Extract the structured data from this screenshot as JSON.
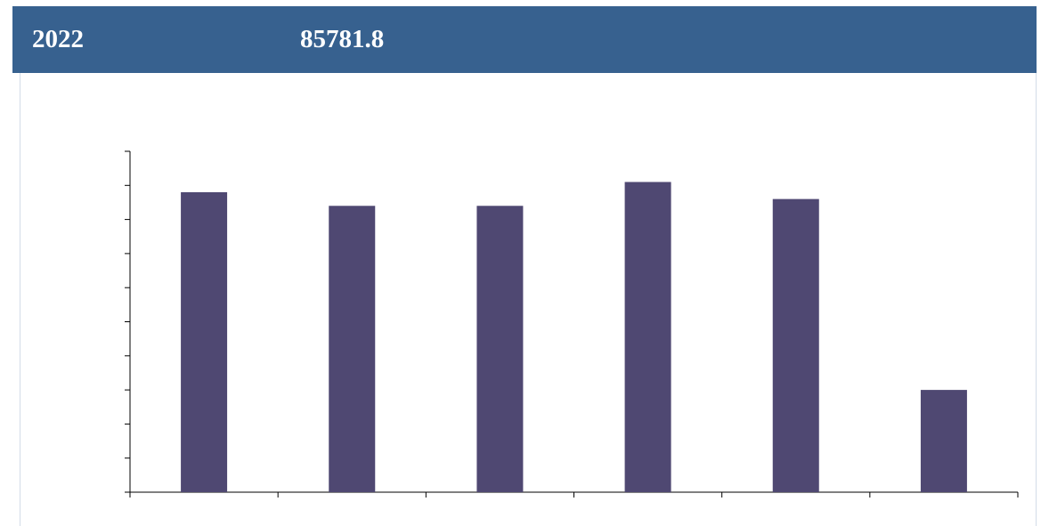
{
  "header": {
    "cells": [
      "2022",
      "85781.8"
    ]
  },
  "chart_data": {
    "type": "bar",
    "categories": [
      null,
      null,
      null,
      null,
      null,
      null
    ],
    "values": [
      8.8,
      8.4,
      8.4,
      9.1,
      8.6,
      3.0
    ],
    "color": "#4f4872",
    "ylim": [
      0,
      10
    ],
    "yticks": [
      0,
      1,
      2,
      3,
      4,
      5,
      6,
      7,
      8,
      9,
      10
    ],
    "grid": false
  }
}
